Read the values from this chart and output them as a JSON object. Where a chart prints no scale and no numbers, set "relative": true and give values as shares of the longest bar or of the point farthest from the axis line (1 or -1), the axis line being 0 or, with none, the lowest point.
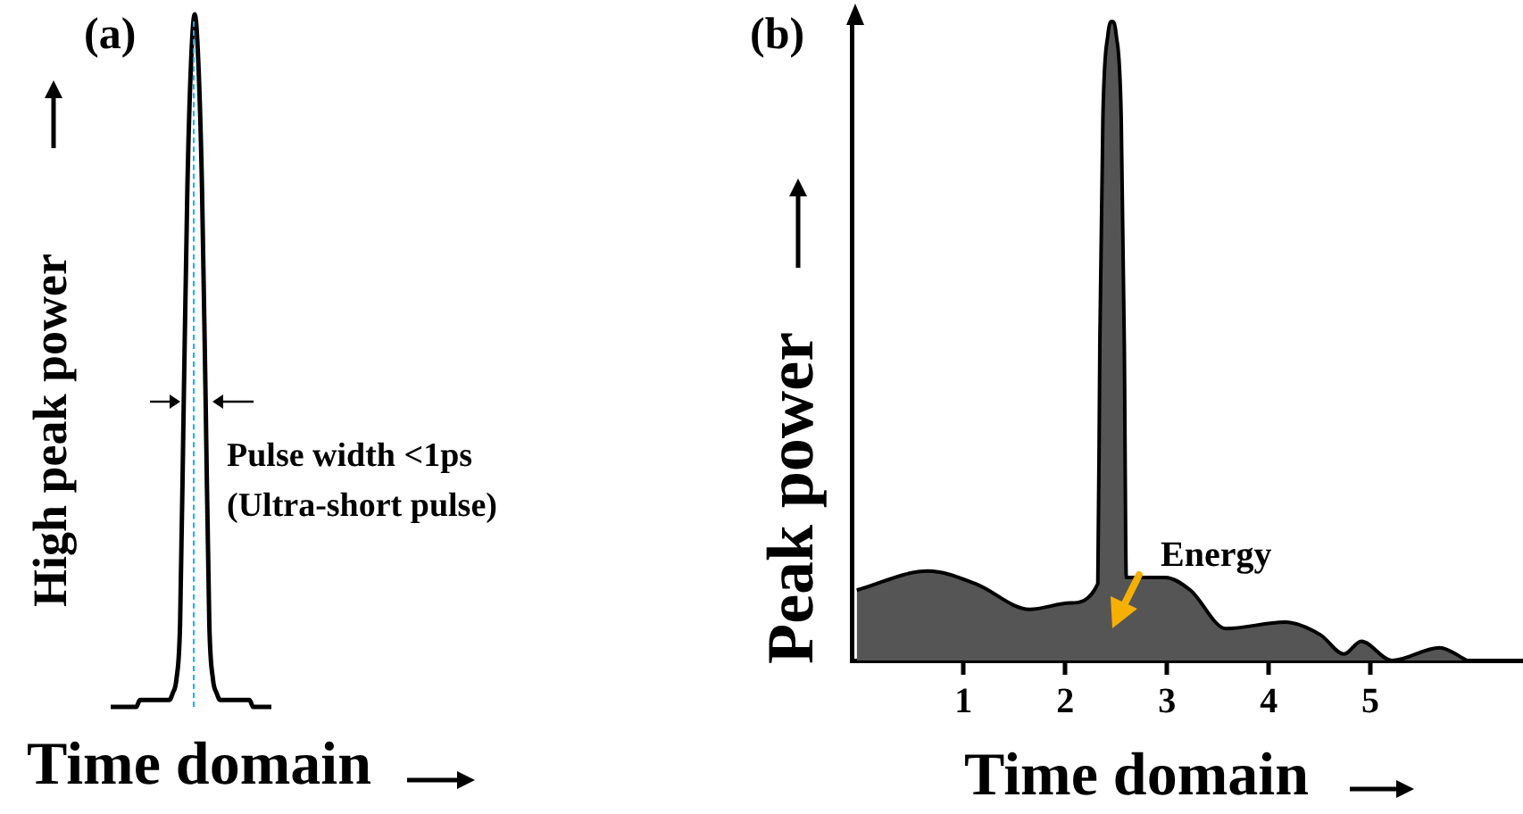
{
  "chart_data": [
    {
      "type": "line",
      "title": "(a)",
      "xlabel": "Time domain",
      "ylabel": "High peak power",
      "relative": true,
      "tick_labels": false,
      "grid": false,
      "legend": false,
      "marker": "none",
      "annotations": [
        "Pulse width <1ps",
        "(Ultra-short pulse)"
      ],
      "categories": [
        null,
        null,
        null,
        null,
        null,
        null,
        null,
        null,
        null,
        null,
        null,
        null,
        null,
        null,
        null,
        null,
        null,
        null,
        null,
        null,
        null,
        null,
        null,
        null,
        null,
        null,
        null,
        null,
        null,
        null,
        null,
        null,
        null,
        null,
        null,
        null,
        null,
        null,
        null,
        null,
        null,
        null,
        null,
        null,
        null
      ],
      "series": [
        {
          "color": "#000000",
          "values": [
            0,
            0,
            0,
            0,
            0,
            0,
            0,
            0,
            0.01,
            0.01,
            0.01,
            0.01,
            0.01,
            0.01,
            0.01,
            0.01,
            0.01,
            0.02,
            0.04,
            0.12,
            0.44,
            0.75,
            0.93,
            1,
            0.93,
            0.75,
            0.44,
            0.12,
            0.04,
            0.02,
            0.01,
            0.01,
            0.01,
            0.01,
            0.01,
            0.01,
            0.01,
            0.01,
            0.01,
            0,
            0,
            0,
            0,
            0,
            0
          ]
        }
      ]
    },
    {
      "type": "area",
      "title": "(b)",
      "xlabel": "Time domain",
      "ylabel": "Peak power",
      "relative": true,
      "tick_labels": "x",
      "grid": false,
      "legend": false,
      "marker": "none",
      "annotations": [
        "Energy"
      ],
      "xlim": [
        -0.1,
        6.5
      ],
      "xticks": [
        1,
        2,
        3,
        4,
        5
      ],
      "series": [
        {
          "color": "#555555",
          "x": [
            -0.05,
            0.65,
            1.12,
            1.65,
            2.05,
            2.32,
            2.34,
            2.37,
            2.42,
            2.46,
            2.5,
            2.55,
            2.58,
            2.6,
            2.98,
            3.23,
            3.58,
            4.16,
            4.51,
            4.74,
            4.91,
            5.21,
            5.68,
            5.95
          ],
          "values": [
            0.11,
            0.14,
            0.12,
            0.08,
            0.09,
            0.12,
            0.5,
            0.85,
            0.98,
            1,
            0.98,
            0.85,
            0.5,
            0.13,
            0.13,
            0.11,
            0.05,
            0.06,
            0.04,
            0.01,
            0.03,
            0,
            0.02,
            0
          ]
        }
      ]
    }
  ]
}
